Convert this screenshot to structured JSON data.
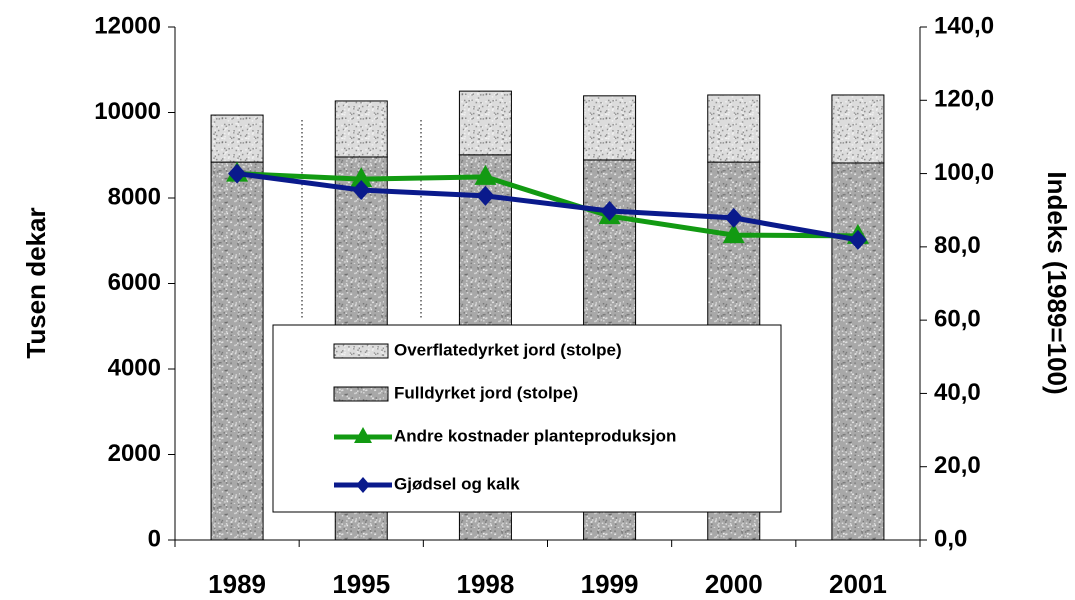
{
  "chart_data": {
    "type": "bar",
    "categories": [
      "1989",
      "1995",
      "1998",
      "1999",
      "2000",
      "2001"
    ],
    "y_label": "Tusen dekar",
    "y2_label": "Indeks (1989=100)",
    "ylim": [
      0,
      12000
    ],
    "yticks": [
      0,
      2000,
      4000,
      6000,
      8000,
      10000,
      12000
    ],
    "y2lim": [
      0,
      140
    ],
    "y2ticks": [
      {
        "value": 0,
        "label": "0,0"
      },
      {
        "value": 20,
        "label": "20,0"
      },
      {
        "value": 40,
        "label": "40,0"
      },
      {
        "value": 60,
        "label": "60,0"
      },
      {
        "value": 80,
        "label": "80,0"
      },
      {
        "value": 100,
        "label": "100,0"
      },
      {
        "value": 120,
        "label": "120,0"
      },
      {
        "value": 140,
        "label": "140,0"
      }
    ],
    "series": [
      {
        "name": "Overflatedyrket jord (stolpe)",
        "type": "bar",
        "color": "#dcdcdc",
        "values": [
          1100,
          1310,
          1490,
          1500,
          1570,
          1590
        ]
      },
      {
        "name": "Fulldyrket jord (stolpe)",
        "type": "bar",
        "color": "#a8a8a8",
        "values": [
          8840,
          8960,
          9010,
          8890,
          8840,
          8820
        ]
      },
      {
        "name": "Andre kostnader planteproduksjon",
        "type": "line",
        "axis": "y2",
        "marker": "triangle",
        "color": "#129a12",
        "values": [
          100,
          98.5,
          99.1,
          88.4,
          83.2,
          83
        ]
      },
      {
        "name": "Gjødsel og kalk",
        "type": "line",
        "axis": "y2",
        "marker": "diamond",
        "color": "#0a1a8c",
        "values": [
          100,
          95.5,
          93.9,
          89.8,
          87.9,
          81.9
        ]
      }
    ]
  }
}
